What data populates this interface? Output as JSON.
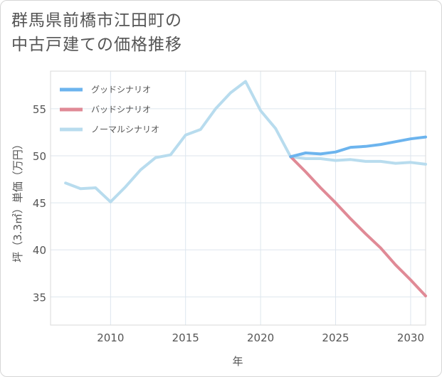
{
  "chart_data": {
    "type": "line",
    "title_lines": [
      "群馬県前橋市江田町の",
      "中古戸建ての価格推移"
    ],
    "xlabel": "年",
    "ylabel": "坪（3.3㎡）単価（万円）",
    "xlim": [
      2006,
      2031
    ],
    "ylim": [
      32,
      59
    ],
    "x_ticks": [
      2010,
      2015,
      2020,
      2025,
      2030
    ],
    "y_ticks": [
      35,
      40,
      45,
      50,
      55
    ],
    "grid": true,
    "legend_position": "top-left",
    "series": [
      {
        "name": "グッドシナリオ",
        "color": "#6cb4ee",
        "x": [
          2022,
          2023,
          2024,
          2025,
          2026,
          2027,
          2028,
          2029,
          2030,
          2031
        ],
        "values": [
          49.9,
          50.3,
          50.2,
          50.4,
          50.9,
          51.0,
          51.2,
          51.5,
          51.8,
          52.0
        ]
      },
      {
        "name": "バッドシナリオ",
        "color": "#e08a96",
        "x": [
          2022,
          2023,
          2024,
          2025,
          2026,
          2027,
          2028,
          2029,
          2030,
          2031
        ],
        "values": [
          49.9,
          48.3,
          46.6,
          45.0,
          43.3,
          41.7,
          40.2,
          38.4,
          36.8,
          35.1
        ]
      },
      {
        "name": "ノーマルシナリオ",
        "color": "#b8dcee",
        "x": [
          2007,
          2008,
          2009,
          2010,
          2011,
          2012,
          2013,
          2014,
          2015,
          2016,
          2017,
          2018,
          2019,
          2020,
          2021,
          2022,
          2023,
          2024,
          2025,
          2026,
          2027,
          2028,
          2029,
          2030,
          2031
        ],
        "values": [
          47.1,
          46.5,
          46.6,
          45.1,
          46.7,
          48.5,
          49.8,
          50.1,
          52.2,
          52.8,
          55.0,
          56.7,
          57.9,
          54.8,
          52.9,
          49.9,
          49.7,
          49.7,
          49.5,
          49.6,
          49.4,
          49.4,
          49.2,
          49.3,
          49.1
        ]
      }
    ]
  }
}
